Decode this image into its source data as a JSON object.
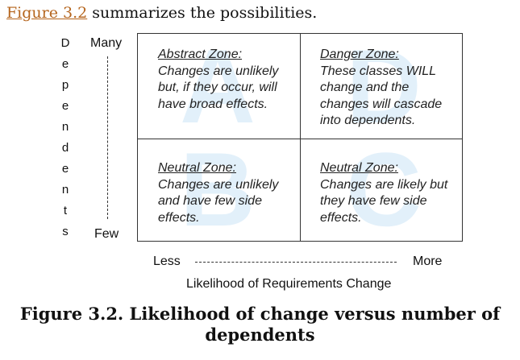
{
  "intro": {
    "link": "Figure 3.2",
    "rest": " summarizes the possibilities."
  },
  "figure": {
    "y_axis": {
      "label_letters": [
        "D",
        "e",
        "p",
        "e",
        "n",
        "d",
        "e",
        "n",
        "t",
        "s"
      ],
      "top": "Many",
      "bottom": "Few"
    },
    "x_axis": {
      "left": "Less",
      "right": "More",
      "label": "Likelihood of Requirements Change"
    },
    "watermark": [
      "A",
      "D",
      "B",
      "C"
    ],
    "quadrants": [
      {
        "zone": "Abstract Zone:",
        "lines": [
          "Changes are unlikely",
          "but, if they occur, will",
          "have broad effects."
        ]
      },
      {
        "zone": "Danger Zone:",
        "lines": [
          "These classes WILL",
          "change and the",
          "changes will cascade",
          "into dependents."
        ]
      },
      {
        "zone": "Neutral Zone:",
        "lines": [
          "Changes are unlikely",
          "and have few side",
          "effects."
        ]
      },
      {
        "zone": "Neutral Zone:",
        "lines": [
          "Changes are likely but",
          "they have few side",
          "effects."
        ]
      }
    ]
  },
  "caption": {
    "line1": "Figure 3.2. Likelihood of change versus number of",
    "line2": "dependents"
  }
}
